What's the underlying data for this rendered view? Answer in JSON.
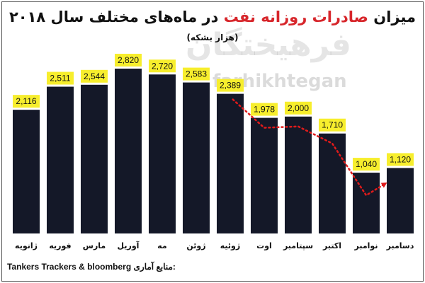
{
  "title": {
    "prefix": "میزان ",
    "highlight": "صادرات روزانه نفت",
    "suffix": " در ماه‌های مختلف سال ۲۰۱۸"
  },
  "subtitle": "(هزار بشکه)",
  "watermark": {
    "text1": "فرهیختگان",
    "text2": "farhikhtegan"
  },
  "source": {
    "text": "Tankers Trackers & bloomberg",
    "label": ":منابع آماری"
  },
  "colors": {
    "bar": "#141828",
    "label_bg": "#f7ee2d",
    "trend": "#e01b1b",
    "title_highlight": "#d7262b"
  },
  "chart_data": {
    "type": "bar",
    "categories": [
      "ژانویه",
      "فوریه",
      "مارس",
      "آوریل",
      "مه",
      "ژوئن",
      "ژوئیه",
      "اوت",
      "سپتامبر",
      "اکتبر",
      "نوامبر",
      "دسامبر"
    ],
    "values": [
      2116,
      2511,
      2544,
      2820,
      2720,
      2583,
      2389,
      1978,
      2000,
      1710,
      1040,
      1120
    ],
    "value_labels": [
      "2,116",
      "2,511",
      "2,544",
      "2,820",
      "2,720",
      "2,583",
      "2,389",
      "1,978",
      "2,000",
      "1,710",
      "1,040",
      "1,120"
    ],
    "ylim": [
      0,
      2820
    ],
    "grid": false,
    "legend": "none",
    "trend_line": {
      "style": "dotted-arrow",
      "from_category": "ژوئیه",
      "to_category": "دسامبر"
    }
  }
}
